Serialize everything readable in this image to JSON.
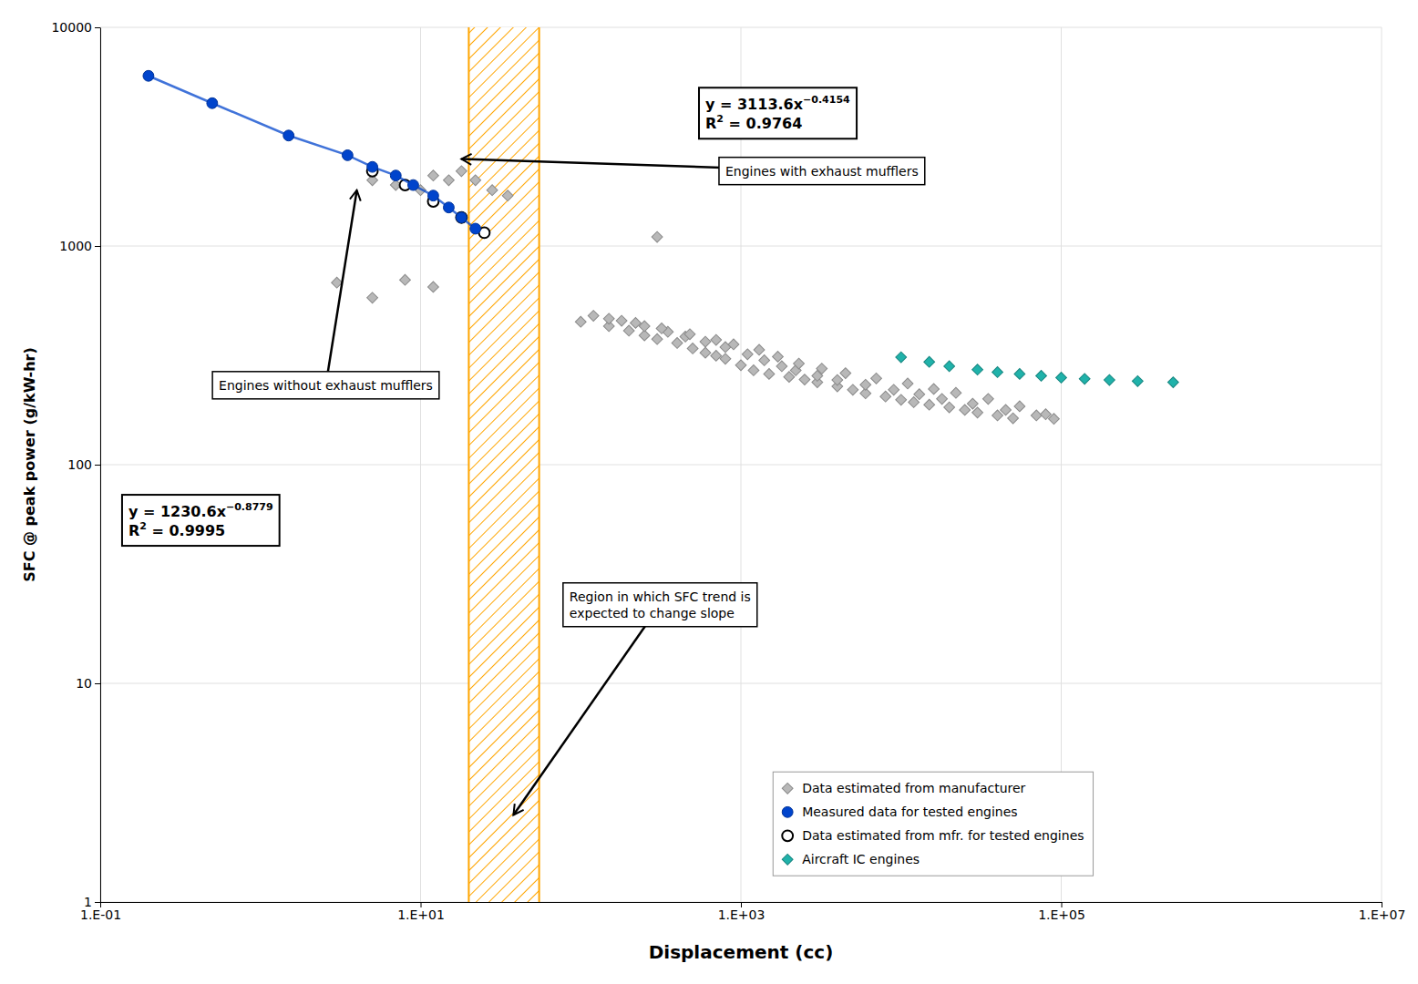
{
  "chart_data": {
    "type": "scatter",
    "xlabel": "Displacement (cc)",
    "ylabel": "SFC @ peak power (g/kW-hr)",
    "log": true,
    "xlim": [
      0.1,
      10000000
    ],
    "ylim": [
      1,
      10000
    ],
    "xticks": [
      {
        "value": 0.1,
        "label": "1.E-01"
      },
      {
        "value": 10,
        "label": "1.E+01"
      },
      {
        "value": 1000,
        "label": "1.E+03"
      },
      {
        "value": 100000,
        "label": "1.E+05"
      },
      {
        "value": 10000000,
        "label": "1.E+07"
      }
    ],
    "yticks": [
      1,
      10,
      100,
      1000,
      10000
    ],
    "grid": true,
    "legend": "bottom",
    "band": {
      "from": 20,
      "to": 55,
      "color": "#FFA500"
    },
    "series": [
      {
        "name": "Data estimated from manufacturer",
        "type": "scatter",
        "marker": "diamond",
        "color": "#b8b8b8",
        "x": [
          3.0,
          5.0,
          8.0,
          12.0,
          5,
          7,
          10,
          12,
          15,
          18,
          22,
          28,
          35,
          100,
          150,
          200,
          250,
          300,
          400,
          500,
          600,
          700,
          800,
          1000,
          1200,
          1500,
          2000,
          2500,
          3000,
          4000,
          5000,
          6000,
          8000,
          10000,
          12000,
          15000,
          20000,
          25000,
          30000,
          40000,
          50000,
          120,
          180,
          250,
          350,
          450,
          600,
          800,
          1100,
          1400,
          1800,
          2200,
          3000,
          4000,
          6000,
          9000,
          13000,
          18000,
          28000,
          45000,
          70000,
          90000,
          150,
          220,
          320,
          480,
          700,
          900,
          1300,
          1700,
          2300,
          3200,
          4500,
          7000,
          11000,
          16000,
          22000,
          35000,
          55000,
          80000,
          300
        ],
        "values": [
          680,
          580,
          700,
          650,
          2000,
          1900,
          1800,
          2100,
          2000,
          2200,
          2000,
          1800,
          1700,
          450,
          430,
          410,
          390,
          375,
          360,
          340,
          325,
          315,
          305,
          285,
          270,
          260,
          252,
          245,
          238,
          228,
          220,
          212,
          205,
          198,
          193,
          188,
          183,
          178,
          173,
          168,
          163,
          480,
          455,
          430,
          405,
          385,
          365,
          345,
          320,
          300,
          282,
          270,
          255,
          244,
          232,
          220,
          210,
          200,
          190,
          178,
          168,
          162,
          465,
          445,
          420,
          395,
          372,
          355,
          335,
          312,
          290,
          275,
          262,
          248,
          235,
          222,
          213,
          200,
          185,
          170,
          1100
        ]
      },
      {
        "name": "Measured data for tested engines",
        "type": "line",
        "marker": "circle",
        "line_style": "solid",
        "color": "#0044CC",
        "x": [
          0.2,
          0.5,
          1.5,
          3.5,
          5.0,
          7.0,
          9.0,
          12.0,
          15.0,
          18.0,
          22.0
        ],
        "values": [
          6000,
          4500,
          3200,
          2600,
          2300,
          2100,
          1900,
          1700,
          1500,
          1350,
          1200
        ]
      },
      {
        "name": "Data estimated from mfr. for tested engines",
        "type": "scatter",
        "marker": "circle",
        "color": "#ffffff",
        "x": [
          5.0,
          8.0,
          12.0,
          18.0,
          25.0
        ],
        "values": [
          2200,
          1900,
          1600,
          1350,
          1150
        ]
      },
      {
        "name": "Aircraft IC engines",
        "type": "scatter",
        "marker": "diamond",
        "color": "#20B2AA",
        "x": [
          10000,
          15000,
          20000,
          30000,
          40000,
          55000,
          75000,
          100000,
          140000,
          200000,
          300000,
          500000
        ],
        "values": [
          310,
          295,
          282,
          272,
          265,
          260,
          255,
          250,
          247,
          244,
          241,
          238
        ]
      }
    ],
    "annotations": [
      {
        "lines": [
          [
            "y = 1230.6x",
            "−0.8779"
          ],
          [
            "R",
            "2",
            " = 0.9995"
          ]
        ],
        "text_x": 0.15,
        "text_y": 55
      },
      {
        "lines": [
          [
            "y = 3113.6x",
            "−0.4154"
          ],
          [
            "R",
            "2",
            " = 0.9764"
          ]
        ],
        "text_x": 600,
        "text_y": 4000
      },
      {
        "lines": [
          [
            "Engines without exhaust mufflers"
          ]
        ],
        "x": 4.0,
        "y": 1800,
        "text_x": 0.55,
        "text_y": 220
      },
      {
        "lines": [
          [
            "Engines with exhaust mufflers"
          ]
        ],
        "x": 18,
        "y": 2500,
        "text_x": 800,
        "text_y": 2100
      },
      {
        "lines": [
          [
            "Region in which SFC trend is"
          ],
          [
            "expected to change slope"
          ]
        ],
        "x": 38,
        "y": 2.5,
        "text_x": 85,
        "text_y": 20
      }
    ]
  }
}
